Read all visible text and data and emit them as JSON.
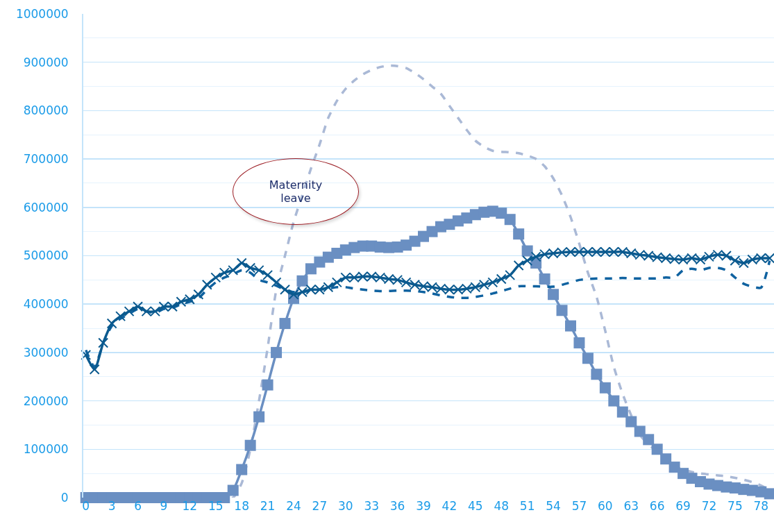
{
  "chart_data": {
    "type": "line",
    "x": [
      0,
      1,
      2,
      3,
      4,
      5,
      6,
      7,
      8,
      9,
      10,
      11,
      12,
      13,
      14,
      15,
      16,
      17,
      18,
      19,
      20,
      21,
      22,
      23,
      24,
      25,
      26,
      27,
      28,
      29,
      30,
      31,
      32,
      33,
      34,
      35,
      36,
      37,
      38,
      39,
      40,
      41,
      42,
      43,
      44,
      45,
      46,
      47,
      48,
      49,
      50,
      51,
      52,
      53,
      54,
      55,
      56,
      57,
      58,
      59,
      60,
      61,
      62,
      63,
      64,
      65,
      66,
      67,
      68,
      69,
      70,
      71,
      72,
      73,
      74,
      75,
      76,
      77,
      78,
      79
    ],
    "xlim": [
      -0.3,
      79.5
    ],
    "xticks": [
      0,
      3,
      6,
      9,
      12,
      15,
      18,
      21,
      24,
      27,
      30,
      33,
      36,
      39,
      42,
      45,
      48,
      51,
      54,
      57,
      60,
      63,
      66,
      69,
      72,
      75,
      78
    ],
    "ylim": [
      0,
      1000000
    ],
    "yticks": [
      0,
      100000,
      200000,
      300000,
      400000,
      500000,
      600000,
      700000,
      800000,
      900000,
      1000000
    ],
    "grid": "y",
    "series": [
      {
        "color": "#0b5a8f",
        "marker": "cross",
        "line_style": "solid",
        "values": [
          295000,
          265000,
          320000,
          360000,
          375000,
          385000,
          395000,
          385000,
          385000,
          395000,
          395000,
          405000,
          410000,
          420000,
          440000,
          455000,
          465000,
          470000,
          485000,
          475000,
          470000,
          460000,
          445000,
          430000,
          420000,
          425000,
          430000,
          430000,
          435000,
          445000,
          455000,
          455000,
          457000,
          457000,
          455000,
          452000,
          450000,
          445000,
          440000,
          437000,
          435000,
          432000,
          430000,
          430000,
          432000,
          435000,
          440000,
          445000,
          452000,
          460000,
          480000,
          490000,
          498000,
          503000,
          505000,
          507000,
          508000,
          508000,
          508000,
          508000,
          508000,
          508000,
          508000,
          505000,
          502000,
          500000,
          497000,
          495000,
          493000,
          492000,
          495000,
          492000,
          498000,
          502000,
          500000,
          490000,
          485000,
          492000,
          495000,
          495000
        ]
      },
      {
        "color": "#0f62a0",
        "marker": "none",
        "line_style": "dashed",
        "values": [
          305000,
          270000,
          320000,
          355000,
          370000,
          380000,
          390000,
          385000,
          382000,
          390000,
          392000,
          400000,
          405000,
          412000,
          430000,
          445000,
          455000,
          462000,
          470000,
          465000,
          450000,
          445000,
          438000,
          430000,
          425000,
          425000,
          428000,
          430000,
          432000,
          435000,
          435000,
          432000,
          430000,
          428000,
          427000,
          427000,
          428000,
          428000,
          427000,
          425000,
          422000,
          418000,
          415000,
          413000,
          413000,
          415000,
          418000,
          422000,
          427000,
          432000,
          437000,
          437000,
          437000,
          436000,
          436000,
          440000,
          445000,
          450000,
          452000,
          453000,
          453000,
          453000,
          454000,
          453000,
          453000,
          453000,
          453000,
          455000,
          455000,
          470000,
          473000,
          470000,
          475000,
          475000,
          470000,
          455000,
          442000,
          436000,
          434000,
          490000
        ]
      },
      {
        "color": "#6a8fc2",
        "marker": "square",
        "line_style": "solid",
        "values": [
          0,
          0,
          0,
          0,
          0,
          0,
          0,
          0,
          0,
          0,
          0,
          0,
          0,
          0,
          0,
          0,
          0,
          15000,
          58000,
          108000,
          167000,
          233000,
          300000,
          360000,
          412000,
          448000,
          473000,
          487000,
          497000,
          505000,
          512000,
          517000,
          520000,
          520000,
          518000,
          517000,
          518000,
          522000,
          530000,
          540000,
          550000,
          560000,
          565000,
          572000,
          578000,
          585000,
          590000,
          592000,
          588000,
          575000,
          545000,
          510000,
          485000,
          452000,
          420000,
          387000,
          355000,
          320000,
          288000,
          255000,
          227000,
          200000,
          177000,
          157000,
          137000,
          120000,
          100000,
          80000,
          63000,
          50000,
          40000,
          33000,
          28000,
          25000,
          22000,
          20000,
          17000,
          15000,
          12000,
          8000
        ]
      },
      {
        "color": "#aab9d6",
        "marker": "none",
        "line_style": "dashed",
        "values": [
          0,
          0,
          0,
          0,
          0,
          0,
          0,
          0,
          0,
          0,
          0,
          0,
          0,
          0,
          0,
          0,
          0,
          0,
          30000,
          100000,
          200000,
          310000,
          430000,
          500000,
          570000,
          625000,
          680000,
          730000,
          785000,
          820000,
          845000,
          862000,
          875000,
          884000,
          890000,
          893000,
          892000,
          888000,
          878000,
          865000,
          850000,
          835000,
          810000,
          785000,
          760000,
          738000,
          725000,
          717000,
          715000,
          714000,
          712000,
          707000,
          700000,
          685000,
          660000,
          625000,
          580000,
          525000,
          465000,
          415000,
          345000,
          270000,
          215000,
          170000,
          130000,
          110000,
          95000,
          78000,
          65000,
          58000,
          53000,
          50000,
          48000,
          46000,
          44000,
          41000,
          37000,
          32000,
          25000,
          15000
        ]
      }
    ],
    "annotations": [
      "Maternity leave"
    ]
  }
}
